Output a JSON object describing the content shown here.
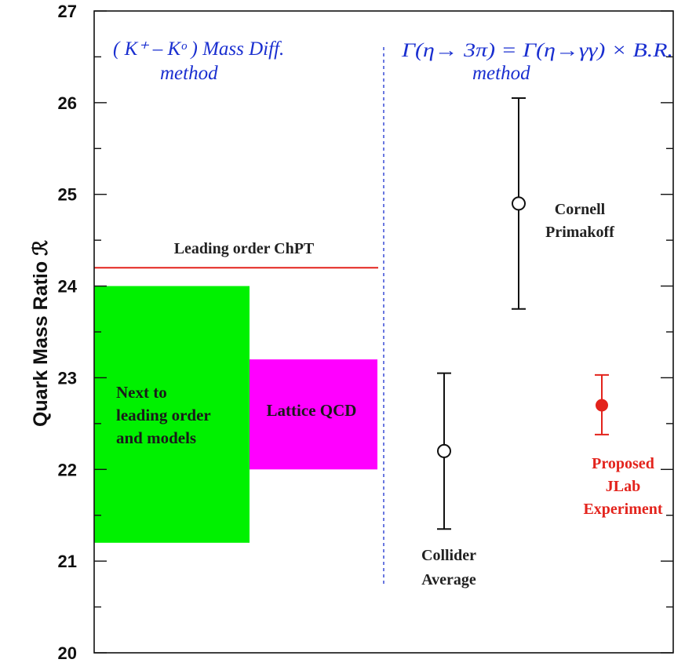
{
  "colors": {
    "axis": "#111111",
    "nlo_box": "#00f100",
    "lattice_box": "#ff00ff",
    "chpt_line": "#e3231c",
    "divider": "#1a2fd0",
    "method_text": "#1a2fd0",
    "errorbar_black": "#111111",
    "errorbar_red": "#e3231c"
  },
  "chart_data": {
    "type": "scatter",
    "ylabel": "Quark Mass Ratio ℛ",
    "ylim": [
      20,
      27
    ],
    "yticks": [
      20,
      21,
      22,
      23,
      24,
      25,
      26,
      27
    ],
    "grid": false,
    "method_labels": {
      "left_line1": "( K⁺ – Kᵒ )  Mass Diff.",
      "left_line2": "method",
      "right_line1": "Γ(η→ 3π) = Γ(η→γγ) × B.R.",
      "right_line2": "method"
    },
    "bands": [
      {
        "label_lines": [
          "Next to",
          "leading order",
          "and models"
        ],
        "low": 21.2,
        "high": 24.0,
        "color": "#00f100"
      },
      {
        "label_lines": [
          "Lattice QCD"
        ],
        "low": 22.0,
        "high": 23.2,
        "color": "#ff00ff"
      }
    ],
    "reference_line": {
      "label": "Leading order ChPT",
      "value": 24.2,
      "color": "#e3231c"
    },
    "points": [
      {
        "label_lines": [
          "Collider",
          "Average"
        ],
        "value": 22.2,
        "low": 21.35,
        "high": 23.05,
        "filled": false,
        "color": "#111111"
      },
      {
        "label_lines": [
          "Cornell",
          "Primakoff"
        ],
        "value": 24.9,
        "low": 23.75,
        "high": 26.05,
        "filled": false,
        "color": "#111111"
      },
      {
        "label_lines": [
          "Proposed",
          "JLab",
          "Experiment"
        ],
        "value": 22.7,
        "low": 22.38,
        "high": 23.03,
        "filled": true,
        "color": "#e3231c"
      }
    ]
  }
}
